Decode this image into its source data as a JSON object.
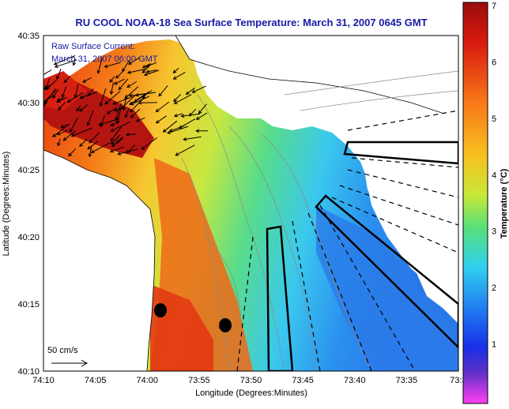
{
  "title": "RU COOL  NOAA-18  Sea Surface Temperature:  March 31, 2007 0645 GMT",
  "current_note": {
    "line1": "Raw Surface Current:",
    "line2": "March 31, 2007 06:00 GMT"
  },
  "axes": {
    "xlabel": "Longitude (Degrees:Minutes)",
    "ylabel": "Latitude (Degrees:Minutes)",
    "x_ticks": [
      "74:10",
      "74:05",
      "74:00",
      "73:55",
      "73:50",
      "73:45",
      "73:40",
      "73:35",
      "73:3"
    ],
    "y_ticks": [
      "40:35",
      "40:30",
      "40:25",
      "40:20",
      "40:15",
      "40:10"
    ]
  },
  "scale_bar": {
    "label": "50 cm/s"
  },
  "colorbar": {
    "label": "Temperature (°C)",
    "ticks": [
      "7",
      "6",
      "5",
      "4",
      "3",
      "2",
      "1"
    ],
    "colors": [
      "#b01010",
      "#e02a10",
      "#f87818",
      "#f8c020",
      "#d8e838",
      "#58e078",
      "#20c8f0",
      "#2080f0",
      "#1830e8",
      "#4428c8",
      "#c040e0",
      "#ff40f0"
    ]
  },
  "markers": {
    "station_color": "#000000"
  }
}
